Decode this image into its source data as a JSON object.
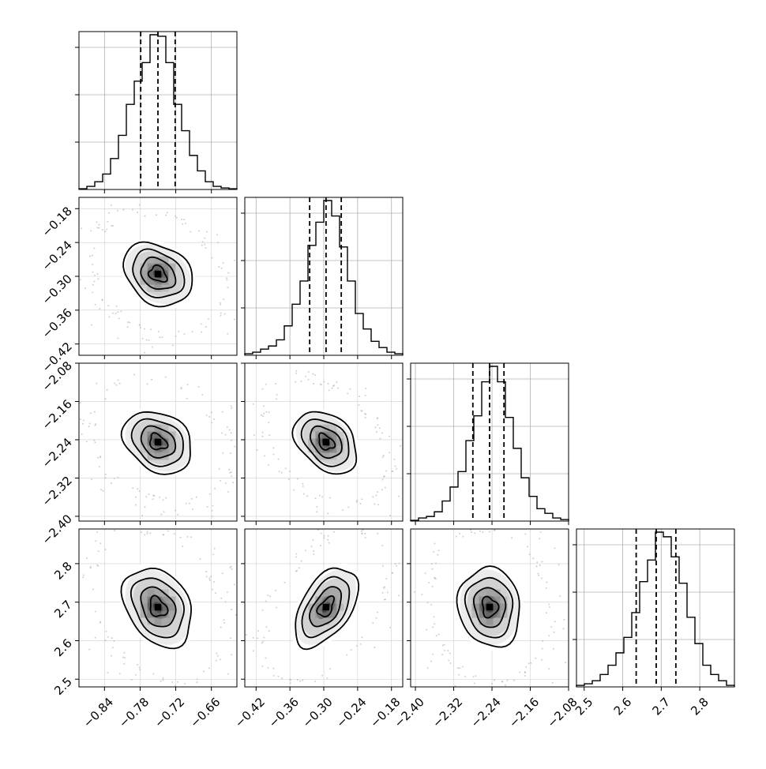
{
  "chart_data": {
    "type": "corner",
    "dim": 4,
    "params": [
      {
        "range": [
          -0.883,
          -0.617
        ],
        "ticks": [
          -0.84,
          -0.78,
          -0.72,
          -0.66
        ],
        "tick_labels": [
          "−0.84",
          "−0.78",
          "−0.72",
          "−0.66"
        ],
        "quantiles": [
          -0.779,
          -0.75,
          -0.721
        ]
      },
      {
        "range": [
          -0.44,
          -0.16
        ],
        "ticks": [
          -0.42,
          -0.36,
          -0.3,
          -0.24,
          -0.18
        ],
        "tick_labels": [
          "−0.42",
          "−0.36",
          "−0.30",
          "−0.24",
          "−0.18"
        ],
        "quantiles": [
          -0.325,
          -0.296,
          -0.269
        ]
      },
      {
        "range": [
          -2.41,
          -2.08
        ],
        "ticks": [
          -2.4,
          -2.32,
          -2.24,
          -2.16,
          -2.08
        ],
        "tick_labels": [
          "−2.40",
          "−2.32",
          "−2.24",
          "−2.16",
          "−2.08"
        ],
        "quantiles": [
          -2.28,
          -2.245,
          -2.215
        ]
      },
      {
        "range": [
          2.48,
          2.89
        ],
        "ticks": [
          2.5,
          2.6,
          2.7,
          2.8
        ],
        "tick_labels": [
          "2.5",
          "2.6",
          "2.7",
          "2.8"
        ],
        "quantiles": [
          2.635,
          2.687,
          2.738
        ]
      }
    ],
    "histograms": [
      [
        0.5,
        2,
        5,
        10,
        20,
        35,
        55,
        70,
        82,
        100,
        99,
        82,
        55,
        38,
        22,
        12,
        5,
        2,
        1,
        0.5
      ],
      [
        1,
        2,
        4,
        6,
        10,
        19,
        33,
        48,
        71,
        86,
        100,
        90,
        70,
        48,
        27,
        17,
        9,
        5,
        2,
        1
      ],
      [
        0.5,
        2,
        3,
        6,
        13,
        22,
        32,
        52,
        68,
        90,
        100,
        90,
        67,
        47,
        28,
        16,
        8,
        5,
        2,
        1
      ],
      [
        1,
        2,
        4,
        8,
        14,
        22,
        32,
        48,
        68,
        82,
        100,
        97,
        84,
        67,
        45,
        28,
        14,
        8,
        4,
        1
      ]
    ],
    "correlations": {
      "1,0": -0.25,
      "2,0": -0.25,
      "2,1": -0.35,
      "3,0": -0.3,
      "3,1": 0.5,
      "3,2": -0.1
    },
    "sigma_levels": [
      0.5,
      1.0,
      1.5,
      2.0
    ],
    "grid": true
  }
}
